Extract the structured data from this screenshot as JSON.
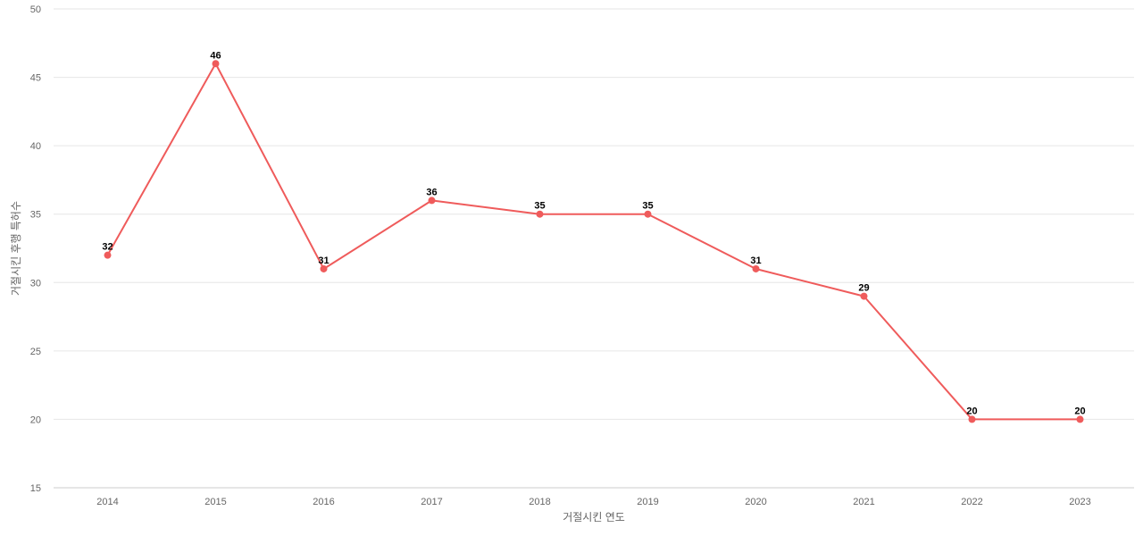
{
  "chart_data": {
    "type": "line",
    "title": "",
    "xlabel": "거절시킨 연도",
    "ylabel": "거절시킨 후행 특허수",
    "categories": [
      "2014",
      "2015",
      "2016",
      "2017",
      "2018",
      "2019",
      "2020",
      "2021",
      "2022",
      "2023"
    ],
    "series": [
      {
        "values": [
          32,
          46,
          31,
          36,
          35,
          35,
          31,
          29,
          20,
          20
        ],
        "color": "#ef5b5b"
      }
    ],
    "ylim": [
      15,
      50
    ],
    "yticks": [
      15,
      20,
      25,
      30,
      35,
      40,
      45,
      50
    ],
    "grid": true,
    "data_labels": true
  }
}
